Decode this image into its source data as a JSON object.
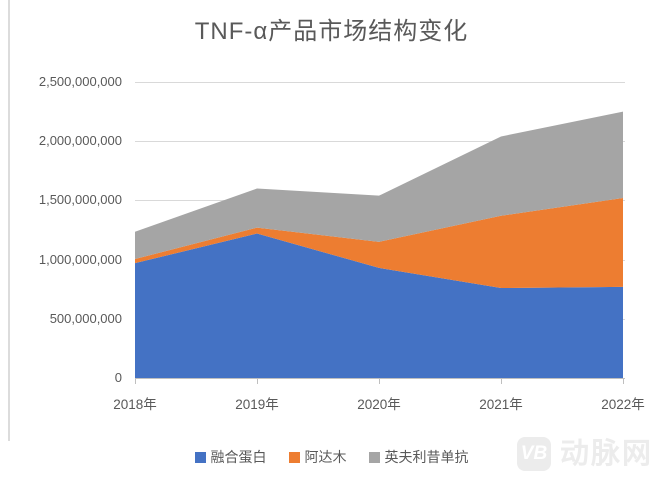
{
  "chart_data": {
    "type": "area",
    "stacked": true,
    "title": "TNF-α产品市场结构变化",
    "categories": [
      "2018年",
      "2019年",
      "2020年",
      "2021年",
      "2022年"
    ],
    "series": [
      {
        "name": "融合蛋白",
        "color": "#4472C4",
        "values": [
          970000000,
          1220000000,
          930000000,
          760000000,
          770000000
        ]
      },
      {
        "name": "阿达木",
        "color": "#ED7D31",
        "values": [
          35000000,
          50000000,
          220000000,
          610000000,
          750000000
        ]
      },
      {
        "name": "英夫利昔单抗",
        "color": "#A5A5A5",
        "values": [
          230000000,
          330000000,
          390000000,
          670000000,
          730000000
        ]
      }
    ],
    "y_axis": {
      "min": 0,
      "max": 2500000000,
      "step": 500000000,
      "tick_labels": [
        "0",
        "500,000,000",
        "1,000,000,000",
        "1,500,000,000",
        "2,000,000,000",
        "2,500,000,000"
      ]
    },
    "grid": true,
    "legend_position": "bottom",
    "colors": {
      "grid": "#D9D9D9",
      "axis": "#BFBFBF",
      "text": "#595959"
    }
  },
  "watermark": {
    "logo_text": "VB",
    "brand_text": "动脉网"
  }
}
